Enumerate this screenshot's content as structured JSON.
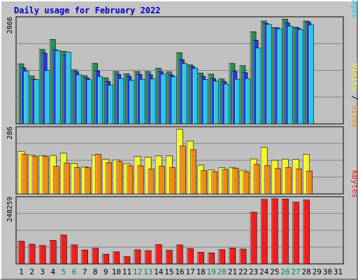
{
  "chart_data": {
    "type": "bar",
    "title": "Daily usage for February 2022",
    "x": [
      "1",
      "2",
      "3",
      "4",
      "5",
      "6",
      "7",
      "8",
      "9",
      "10",
      "11",
      "12",
      "13",
      "14",
      "15",
      "16",
      "17",
      "18",
      "19",
      "20",
      "21",
      "22",
      "23",
      "24",
      "25",
      "26",
      "27",
      "28",
      "29",
      "30",
      "31"
    ],
    "weekend_days": [
      5,
      6,
      12,
      13,
      19,
      20,
      26,
      27
    ],
    "panels": [
      {
        "id": "hits",
        "ymax_label": "2866",
        "ymax": 2866,
        "series": [
          {
            "name": "Hits",
            "color": "#2e8b57",
            "values": [
              1630,
              1300,
              2020,
              2290,
              1970,
              1470,
              1310,
              1640,
              1250,
              1420,
              1360,
              1420,
              1420,
              1510,
              1410,
              1930,
              1600,
              1380,
              1350,
              1220,
              1640,
              1580,
              2500,
              2790,
              2610,
              2840,
              2620,
              2790,
              0,
              0,
              0
            ]
          },
          {
            "name": "Files",
            "color": "#1f3de0",
            "values": [
              1520,
              1210,
              1920,
              2010,
              1870,
              1420,
              1250,
              1440,
              1150,
              1340,
              1290,
              1340,
              1330,
              1420,
              1330,
              1740,
              1560,
              1290,
              1230,
              1150,
              1430,
              1390,
              2270,
              2720,
              2610,
              2740,
              2600,
              2760,
              0,
              0,
              0
            ]
          },
          {
            "name": "Pages",
            "color": "#27c8ee",
            "values": [
              1430,
              1200,
              1450,
              1990,
              1950,
              1330,
              1200,
              1290,
              1050,
              1230,
              1180,
              1210,
              1220,
              1350,
              1280,
              1640,
              1510,
              1200,
              1160,
              1080,
              1210,
              1230,
              2060,
              2700,
              2580,
              2650,
              2560,
              2690,
              0,
              0,
              0
            ]
          }
        ]
      },
      {
        "id": "visits",
        "ymax_label": "286",
        "ymax": 286,
        "series": [
          {
            "name": "Visits",
            "color": "#f5f52e",
            "values": [
              185,
              168,
              167,
              167,
              177,
              133,
              117,
              168,
              151,
              148,
              131,
              163,
              160,
              165,
              165,
              282,
              230,
              125,
              104,
              114,
              115,
              103,
              152,
              203,
              146,
              151,
              150,
              172,
              0,
              0,
              0
            ]
          },
          {
            "name": "Sites",
            "color": "#f28a10",
            "values": [
              172,
              164,
              164,
              120,
              134,
              115,
              114,
              172,
              136,
              141,
              122,
              122,
              108,
              120,
              115,
              208,
              192,
              101,
              96,
              106,
              112,
              96,
              128,
              123,
              110,
              115,
              109,
              99,
              0,
              0,
              0
            ]
          }
        ]
      },
      {
        "id": "kbytes",
        "ymax_label": "248259",
        "ymax": 248259,
        "series": [
          {
            "name": "KBytes",
            "color": "#f01e1e",
            "values": [
              85700,
              74200,
              69400,
              88900,
              109000,
              71700,
              52400,
              58900,
              36500,
              45500,
              27400,
              53100,
              50000,
              72800,
              51400,
              71700,
              57800,
              44100,
              41600,
              53800,
              59800,
              55800,
              195000,
              243400,
              246100,
              244600,
              233100,
              241000,
              0,
              0,
              0
            ]
          }
        ]
      }
    ]
  }
}
